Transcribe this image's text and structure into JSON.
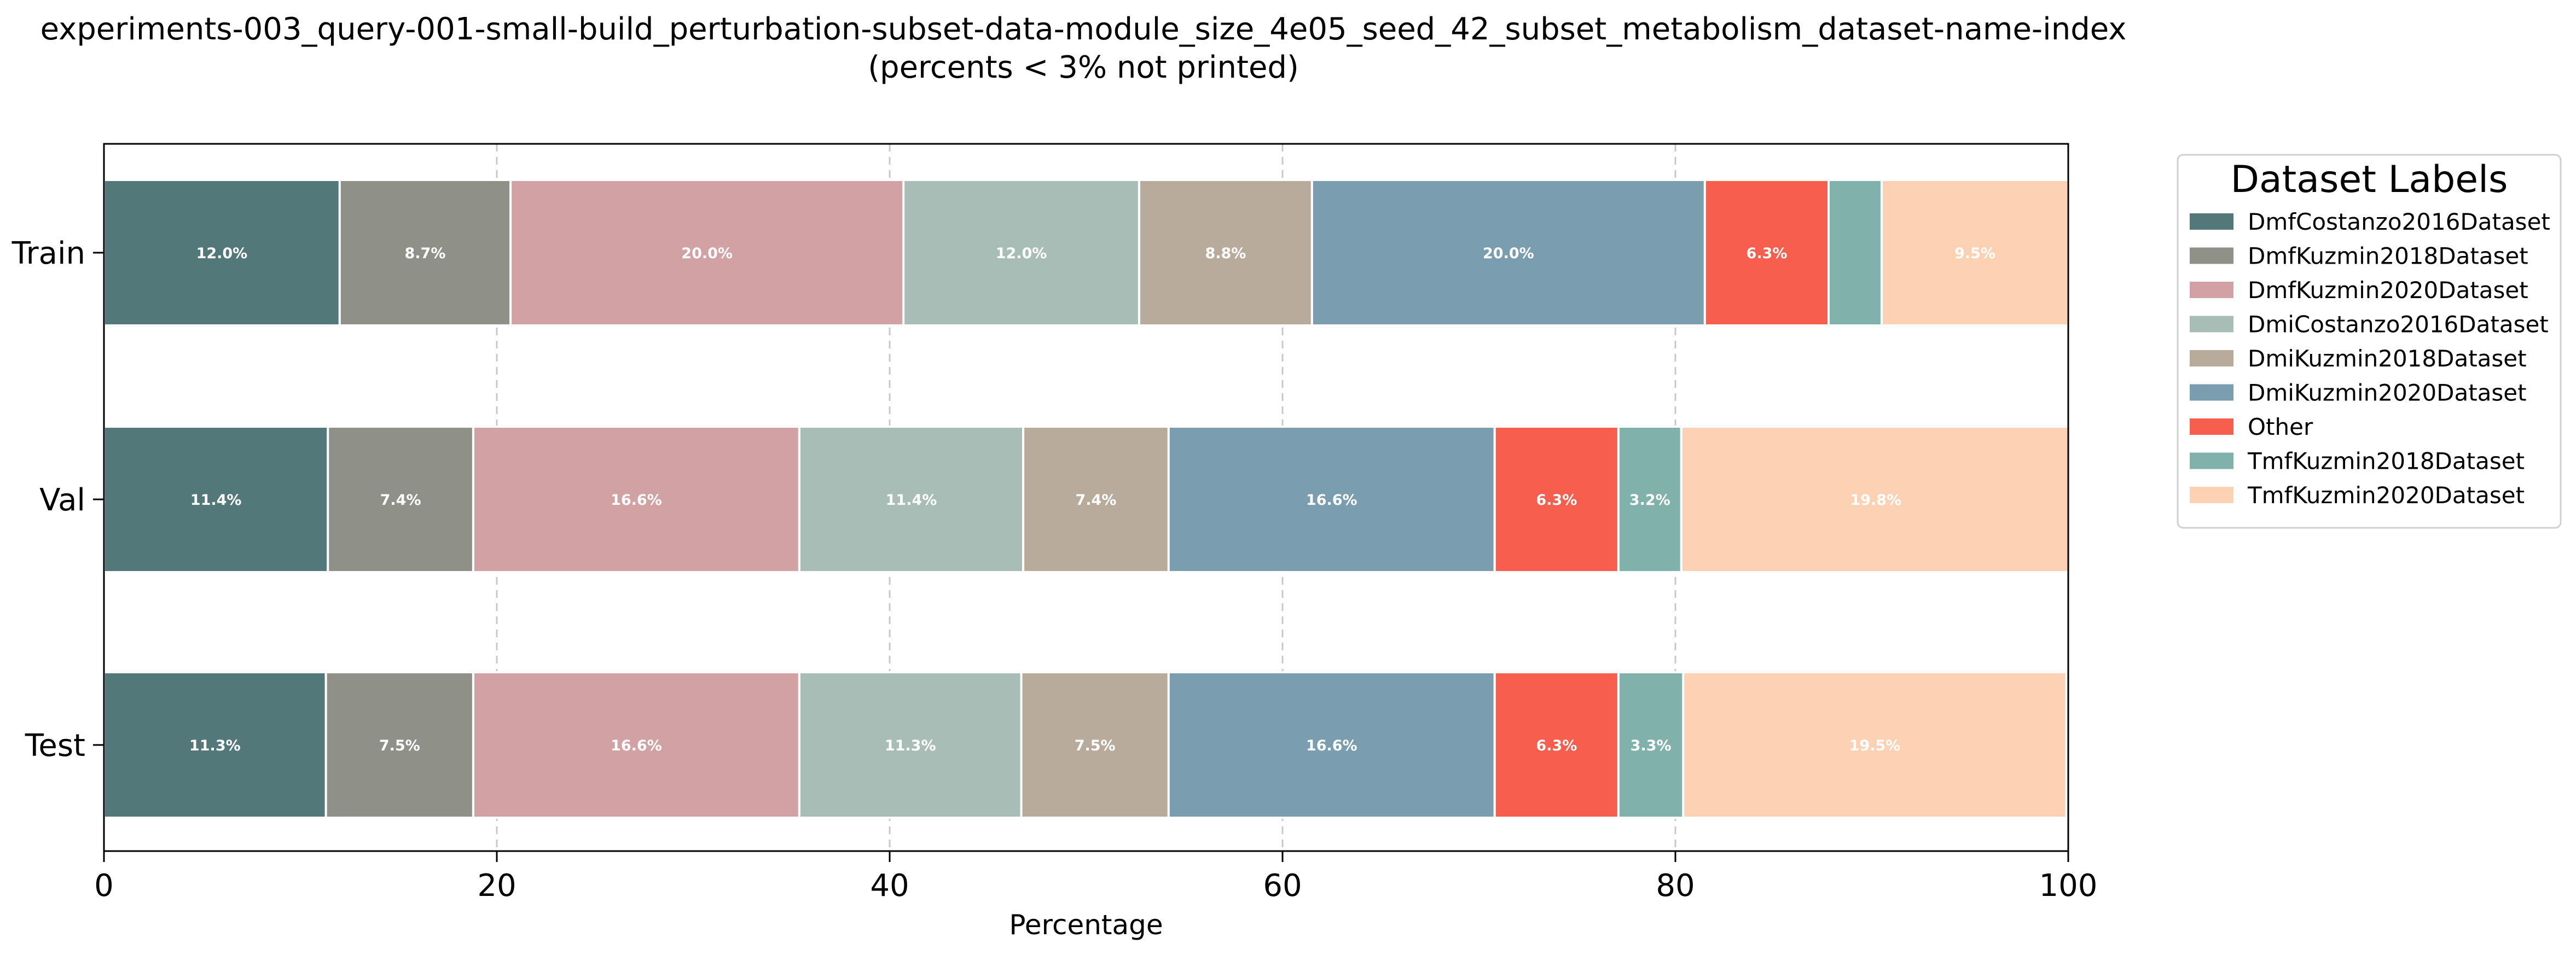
{
  "chart_data": {
    "type": "bar",
    "orientation": "horizontal",
    "stacked": true,
    "title": "experiments-003_query-001-small-build_perturbation-subset-data-module_size_4e05_seed_42_subset_metabolism_dataset-name-index",
    "subtitle": "(percents < 3% not printed)",
    "xlabel": "Percentage",
    "ylabel": "",
    "xlim": [
      0,
      100
    ],
    "xticks": [
      "0",
      "20",
      "40",
      "60",
      "80",
      "100"
    ],
    "grid": "vertical dashed",
    "categories": [
      "Train",
      "Val",
      "Test"
    ],
    "legend_title": "Dataset Labels",
    "legend_position": "outside right",
    "series": [
      {
        "name": "DmfCostanzo2016Dataset",
        "color": "#537879",
        "values": [
          12.0,
          11.4,
          11.3
        ],
        "labels": [
          "12.0%",
          "11.4%",
          "11.3%"
        ]
      },
      {
        "name": "DmfKuzmin2018Dataset",
        "color": "#8f9189",
        "values": [
          8.7,
          7.4,
          7.5
        ],
        "labels": [
          "8.7%",
          "7.4%",
          "7.5%"
        ]
      },
      {
        "name": "DmfKuzmin2020Dataset",
        "color": "#d1a1a3",
        "values": [
          20.0,
          16.6,
          16.6
        ],
        "labels": [
          "20.0%",
          "16.6%",
          "16.6%"
        ]
      },
      {
        "name": "DmiCostanzo2016Dataset",
        "color": "#a8bdb5",
        "values": [
          12.0,
          11.4,
          11.3
        ],
        "labels": [
          "12.0%",
          "11.4%",
          "11.3%"
        ]
      },
      {
        "name": "DmiKuzmin2018Dataset",
        "color": "#b8ab9b",
        "values": [
          8.8,
          7.4,
          7.5
        ],
        "labels": [
          "8.8%",
          "7.4%",
          "7.5%"
        ]
      },
      {
        "name": "DmiKuzmin2020Dataset",
        "color": "#7a9eaf",
        "values": [
          20.0,
          16.6,
          16.6
        ],
        "labels": [
          "20.0%",
          "16.6%",
          "16.6%"
        ]
      },
      {
        "name": "Other",
        "color": "#f85e4e",
        "values": [
          6.3,
          6.3,
          6.3
        ],
        "labels": [
          "6.3%",
          "6.3%",
          "6.3%"
        ]
      },
      {
        "name": "TmfKuzmin2018Dataset",
        "color": "#80b1aa",
        "values": [
          2.7,
          3.2,
          3.3
        ],
        "labels": [
          "",
          "3.2%",
          "3.3%"
        ]
      },
      {
        "name": "TmfKuzmin2020Dataset",
        "color": "#fdd1b4",
        "values": [
          9.5,
          19.8,
          19.5
        ],
        "labels": [
          "9.5%",
          "19.8%",
          "19.5%"
        ]
      }
    ]
  }
}
